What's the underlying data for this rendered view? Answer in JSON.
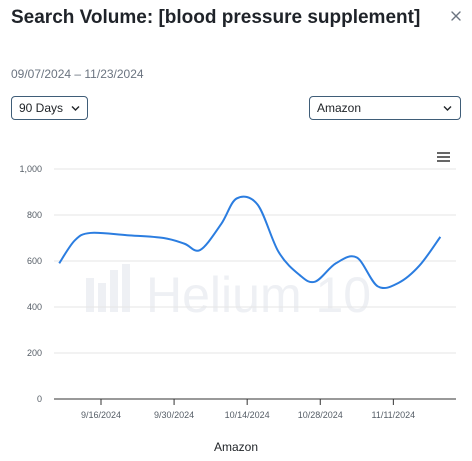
{
  "header": {
    "title": "Search Volume: [blood pressure supplement]",
    "date_range": "09/07/2024 – 11/23/2024"
  },
  "controls": {
    "days_select": {
      "label": "90 Days",
      "icon": "chevron-down-icon"
    },
    "marketplace_select": {
      "label": "Amazon",
      "icon": "chevron-down-icon"
    },
    "close_icon": "close-icon",
    "menu_icon": "hamburger-menu-icon"
  },
  "watermark": {
    "text": "Helium 10"
  },
  "colors": {
    "series": "#2b7de0",
    "grid": "#e6e6e6",
    "axis": "#333333"
  },
  "chart_data": {
    "type": "line",
    "xlabel": "Amazon",
    "ylabel": "",
    "ylim": [
      0,
      1000
    ],
    "yticks": [
      0,
      200,
      400,
      600,
      800,
      1000
    ],
    "ytick_labels": [
      "0",
      "200",
      "400",
      "600",
      "800",
      "1,000"
    ],
    "x_tick_labels": [
      "9/16/2024",
      "9/30/2024",
      "10/14/2024",
      "10/28/2024",
      "11/11/2024"
    ],
    "x_tick_dates": [
      "2024-09-16",
      "2024-09-30",
      "2024-10-14",
      "2024-10-28",
      "2024-11-11"
    ],
    "x_range": [
      "2024-09-07",
      "2024-11-23"
    ],
    "grid": true,
    "legend": "none",
    "series": [
      {
        "x": [
          "2024-09-08",
          "2024-09-11",
          "2024-09-14",
          "2024-09-21",
          "2024-09-28",
          "2024-10-02",
          "2024-10-05",
          "2024-10-09",
          "2024-10-12",
          "2024-10-16",
          "2024-10-20",
          "2024-10-24",
          "2024-10-27",
          "2024-10-31",
          "2024-11-04",
          "2024-11-08",
          "2024-11-12",
          "2024-11-16",
          "2024-11-20"
        ],
        "values": [
          590,
          690,
          722,
          712,
          700,
          675,
          648,
          760,
          872,
          845,
          640,
          540,
          510,
          590,
          615,
          490,
          505,
          580,
          705
        ]
      }
    ]
  }
}
